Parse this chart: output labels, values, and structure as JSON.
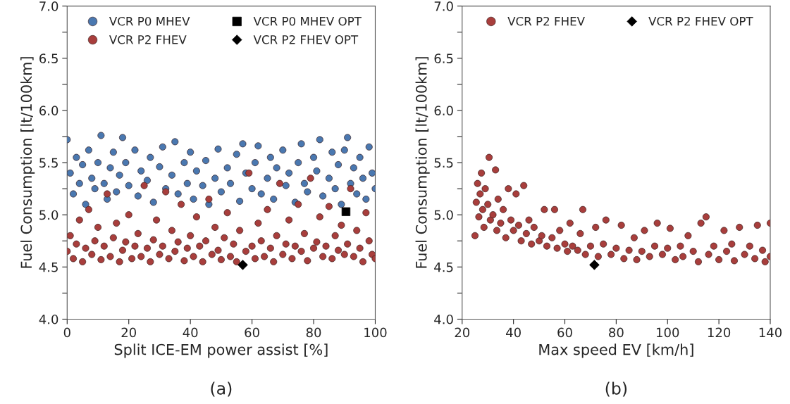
{
  "chart_data": [
    {
      "type": "scatter",
      "xlabel": "Split ICE-EM power assist [%]",
      "ylabel": "Fuel Consumption [lt/100km]",
      "annotations": [
        "(a)"
      ],
      "legend": "top",
      "grid": false,
      "xlim": [
        0,
        100
      ],
      "xticks": [
        0,
        20,
        40,
        60,
        80,
        100
      ],
      "ylim": [
        4.0,
        7.0
      ],
      "yticks": [
        {
          "value": 4.0,
          "label": "4.0"
        },
        {
          "value": 4.25,
          "label": null
        },
        {
          "value": 4.5,
          "label": "4.5"
        },
        {
          "value": 4.75,
          "label": null
        },
        {
          "value": 5.0,
          "label": "5.0"
        },
        {
          "value": 5.25,
          "label": null
        },
        {
          "value": 5.5,
          "label": "5.5"
        },
        {
          "value": 5.75,
          "label": null
        },
        {
          "value": 6.0,
          "label": "6.0"
        },
        {
          "value": 6.25,
          "label": null
        },
        {
          "value": 6.5,
          "label": "6.5"
        },
        {
          "value": 6.75,
          "label": null
        },
        {
          "value": 7.0,
          "label": "7.0"
        }
      ],
      "series": [
        {
          "name": "VCR P0 MHEV",
          "color": "#4a78b0",
          "marker": "circle",
          "x": [
            0,
            1,
            2,
            3,
            4,
            5,
            6,
            7,
            8,
            9,
            10,
            11,
            12,
            13,
            14,
            15,
            16,
            17,
            18,
            19,
            20,
            22,
            23,
            24,
            26,
            27,
            28,
            30,
            31,
            32,
            34,
            35,
            36,
            38,
            39,
            40,
            41,
            42,
            44,
            45,
            46,
            48,
            49,
            50,
            52,
            53,
            55,
            56,
            57,
            58,
            60,
            61,
            62,
            63,
            65,
            66,
            67,
            68,
            70,
            71,
            72,
            74,
            75,
            76,
            77,
            78,
            80,
            81,
            82,
            83,
            85,
            86,
            87,
            88,
            89,
            90,
            91,
            92,
            93,
            94,
            95,
            96,
            97,
            98,
            99,
            100
          ],
          "values": [
            5.72,
            5.4,
            5.2,
            5.55,
            5.3,
            5.48,
            5.1,
            5.62,
            5.35,
            5.25,
            5.5,
            5.76,
            5.3,
            5.15,
            5.45,
            5.6,
            5.22,
            5.38,
            5.74,
            5.5,
            5.28,
            5.62,
            5.18,
            5.42,
            5.33,
            5.55,
            5.12,
            5.46,
            5.65,
            5.25,
            5.38,
            5.7,
            5.2,
            5.5,
            5.3,
            5.6,
            5.15,
            5.42,
            5.28,
            5.52,
            5.1,
            5.35,
            5.63,
            5.22,
            5.45,
            5.3,
            5.58,
            5.13,
            5.68,
            5.4,
            5.25,
            5.5,
            5.66,
            5.2,
            5.35,
            5.55,
            5.15,
            5.45,
            5.62,
            5.28,
            5.4,
            5.12,
            5.5,
            5.68,
            5.3,
            5.22,
            5.55,
            5.42,
            5.72,
            5.18,
            5.35,
            5.6,
            5.25,
            5.48,
            5.1,
            5.62,
            5.74,
            5.3,
            5.45,
            5.2,
            5.55,
            5.35,
            5.15,
            5.65,
            5.4,
            5.25
          ]
        },
        {
          "name": "VCR P2 FHEV",
          "color": "#a83e3c",
          "marker": "circle",
          "x": [
            0,
            1,
            2,
            3,
            4,
            5,
            6,
            7,
            8,
            9,
            10,
            11,
            12,
            13,
            14,
            15,
            16,
            17,
            18,
            19,
            20,
            21,
            22,
            23,
            24,
            25,
            26,
            27,
            28,
            29,
            30,
            31,
            32,
            33,
            34,
            35,
            36,
            37,
            38,
            39,
            40,
            41,
            42,
            43,
            44,
            45,
            46,
            47,
            48,
            49,
            50,
            51,
            52,
            53,
            54,
            55,
            56,
            58,
            59,
            60,
            61,
            62,
            63,
            64,
            65,
            66,
            67,
            68,
            69,
            70,
            71,
            72,
            73,
            74,
            75,
            76,
            77,
            78,
            79,
            80,
            81,
            82,
            83,
            84,
            85,
            86,
            87,
            88,
            89,
            90,
            91,
            92,
            93,
            94,
            95,
            96,
            97,
            98,
            99,
            100
          ],
          "values": [
            4.65,
            4.8,
            4.58,
            4.72,
            4.95,
            4.55,
            4.68,
            5.05,
            4.62,
            4.75,
            4.88,
            4.57,
            4.7,
            5.2,
            4.6,
            4.78,
            4.92,
            4.55,
            4.66,
            4.74,
            5.0,
            4.58,
            4.7,
            4.82,
            4.6,
            5.28,
            4.68,
            4.55,
            4.76,
            4.95,
            4.62,
            4.7,
            5.22,
            4.58,
            4.85,
            4.65,
            4.74,
            5.1,
            4.56,
            4.68,
            4.8,
            4.6,
            4.98,
            4.7,
            4.55,
            4.75,
            5.15,
            4.62,
            4.88,
            4.66,
            4.57,
            4.78,
            5.02,
            4.6,
            4.72,
            4.55,
            4.85,
            4.65,
            5.4,
            4.7,
            4.58,
            4.92,
            4.75,
            4.6,
            5.05,
            4.68,
            4.55,
            4.8,
            5.3,
            4.62,
            4.72,
            4.95,
            4.58,
            4.7,
            5.1,
            4.65,
            4.82,
            4.56,
            5.35,
            4.68,
            4.74,
            4.98,
            4.6,
            4.7,
            5.08,
            4.58,
            4.8,
            4.66,
            4.9,
            4.62,
            4.72,
            5.25,
            4.6,
            4.85,
            4.68,
            4.55,
            5.02,
            4.75,
            4.62,
            4.58
          ]
        },
        {
          "name": "VCR P0 MHEV OPT",
          "color": "#000000",
          "marker": "square",
          "x": [
            90.5
          ],
          "values": [
            5.03
          ]
        },
        {
          "name": "VCR P2 FHEV OPT",
          "color": "#000000",
          "marker": "diamond",
          "x": [
            57
          ],
          "values": [
            4.52
          ]
        }
      ]
    },
    {
      "type": "scatter",
      "xlabel": "Max speed EV [km/h]",
      "ylabel": "Fuel Consumption [lt/100km]",
      "annotations": [
        "(b)"
      ],
      "legend": "top",
      "grid": false,
      "xlim": [
        20,
        140
      ],
      "xticks": [
        20,
        40,
        60,
        80,
        100,
        120,
        140
      ],
      "ylim": [
        4.0,
        7.0
      ],
      "yticks": [
        {
          "value": 4.0,
          "label": "4.0"
        },
        {
          "value": 4.25,
          "label": null
        },
        {
          "value": 4.5,
          "label": "4.5"
        },
        {
          "value": 4.75,
          "label": null
        },
        {
          "value": 5.0,
          "label": "5.0"
        },
        {
          "value": 5.25,
          "label": null
        },
        {
          "value": 5.5,
          "label": "5.5"
        },
        {
          "value": 5.75,
          "label": null
        },
        {
          "value": 6.0,
          "label": "6.0"
        },
        {
          "value": 6.25,
          "label": null
        },
        {
          "value": 6.5,
          "label": "6.5"
        },
        {
          "value": 6.75,
          "label": null
        },
        {
          "value": 7.0,
          "label": "7.0"
        }
      ],
      "series": [
        {
          "name": "VCR P2 FHEV",
          "color": "#a83e3c",
          "marker": "circle",
          "x": [
            25,
            25.5,
            26,
            26.5,
            27,
            27.5,
            28,
            28.5,
            29,
            30,
            30.5,
            31,
            32,
            33,
            33.5,
            34,
            35,
            36,
            37,
            38,
            39,
            40,
            41,
            42,
            43,
            44,
            45,
            46,
            47,
            48,
            50,
            51,
            52,
            53,
            55,
            56,
            57,
            58,
            60,
            61,
            62,
            63,
            65,
            66,
            67,
            68,
            70,
            72,
            73,
            75,
            76,
            78,
            80,
            82,
            83,
            85,
            87,
            88,
            90,
            91,
            93,
            95,
            96,
            98,
            100,
            101,
            103,
            105,
            106,
            108,
            110,
            112,
            113,
            115,
            116,
            118,
            120,
            122,
            123,
            125,
            126,
            128,
            130,
            132,
            134,
            135,
            137,
            138,
            140,
            140
          ],
          "values": [
            4.8,
            5.12,
            5.3,
            4.98,
            5.2,
            5.4,
            5.05,
            4.88,
            5.25,
            5.1,
            5.55,
            4.95,
            5.0,
            5.43,
            4.85,
            5.15,
            4.92,
            5.05,
            4.78,
            5.25,
            4.95,
            4.85,
            5.2,
            4.9,
            4.75,
            5.28,
            4.82,
            4.95,
            4.72,
            4.88,
            4.75,
            4.8,
            5.05,
            4.7,
            4.78,
            5.05,
            4.68,
            4.85,
            4.72,
            4.65,
            4.92,
            4.7,
            4.66,
            4.82,
            5.05,
            4.62,
            4.7,
            4.88,
            4.6,
            4.72,
            4.95,
            4.62,
            4.68,
            4.9,
            4.58,
            4.66,
            4.78,
            4.57,
            4.65,
            4.85,
            4.6,
            4.7,
            4.92,
            4.62,
            4.68,
            4.87,
            4.57,
            4.7,
            4.6,
            4.8,
            4.65,
            4.55,
            4.92,
            4.98,
            4.62,
            4.7,
            4.57,
            4.85,
            4.65,
            4.72,
            4.56,
            4.88,
            4.62,
            4.7,
            4.58,
            4.9,
            4.66,
            4.55,
            4.92,
            4.6
          ]
        },
        {
          "name": "VCR P2 FHEV OPT",
          "color": "#000000",
          "marker": "diamond",
          "x": [
            71.5
          ],
          "values": [
            4.52
          ]
        }
      ]
    }
  ]
}
